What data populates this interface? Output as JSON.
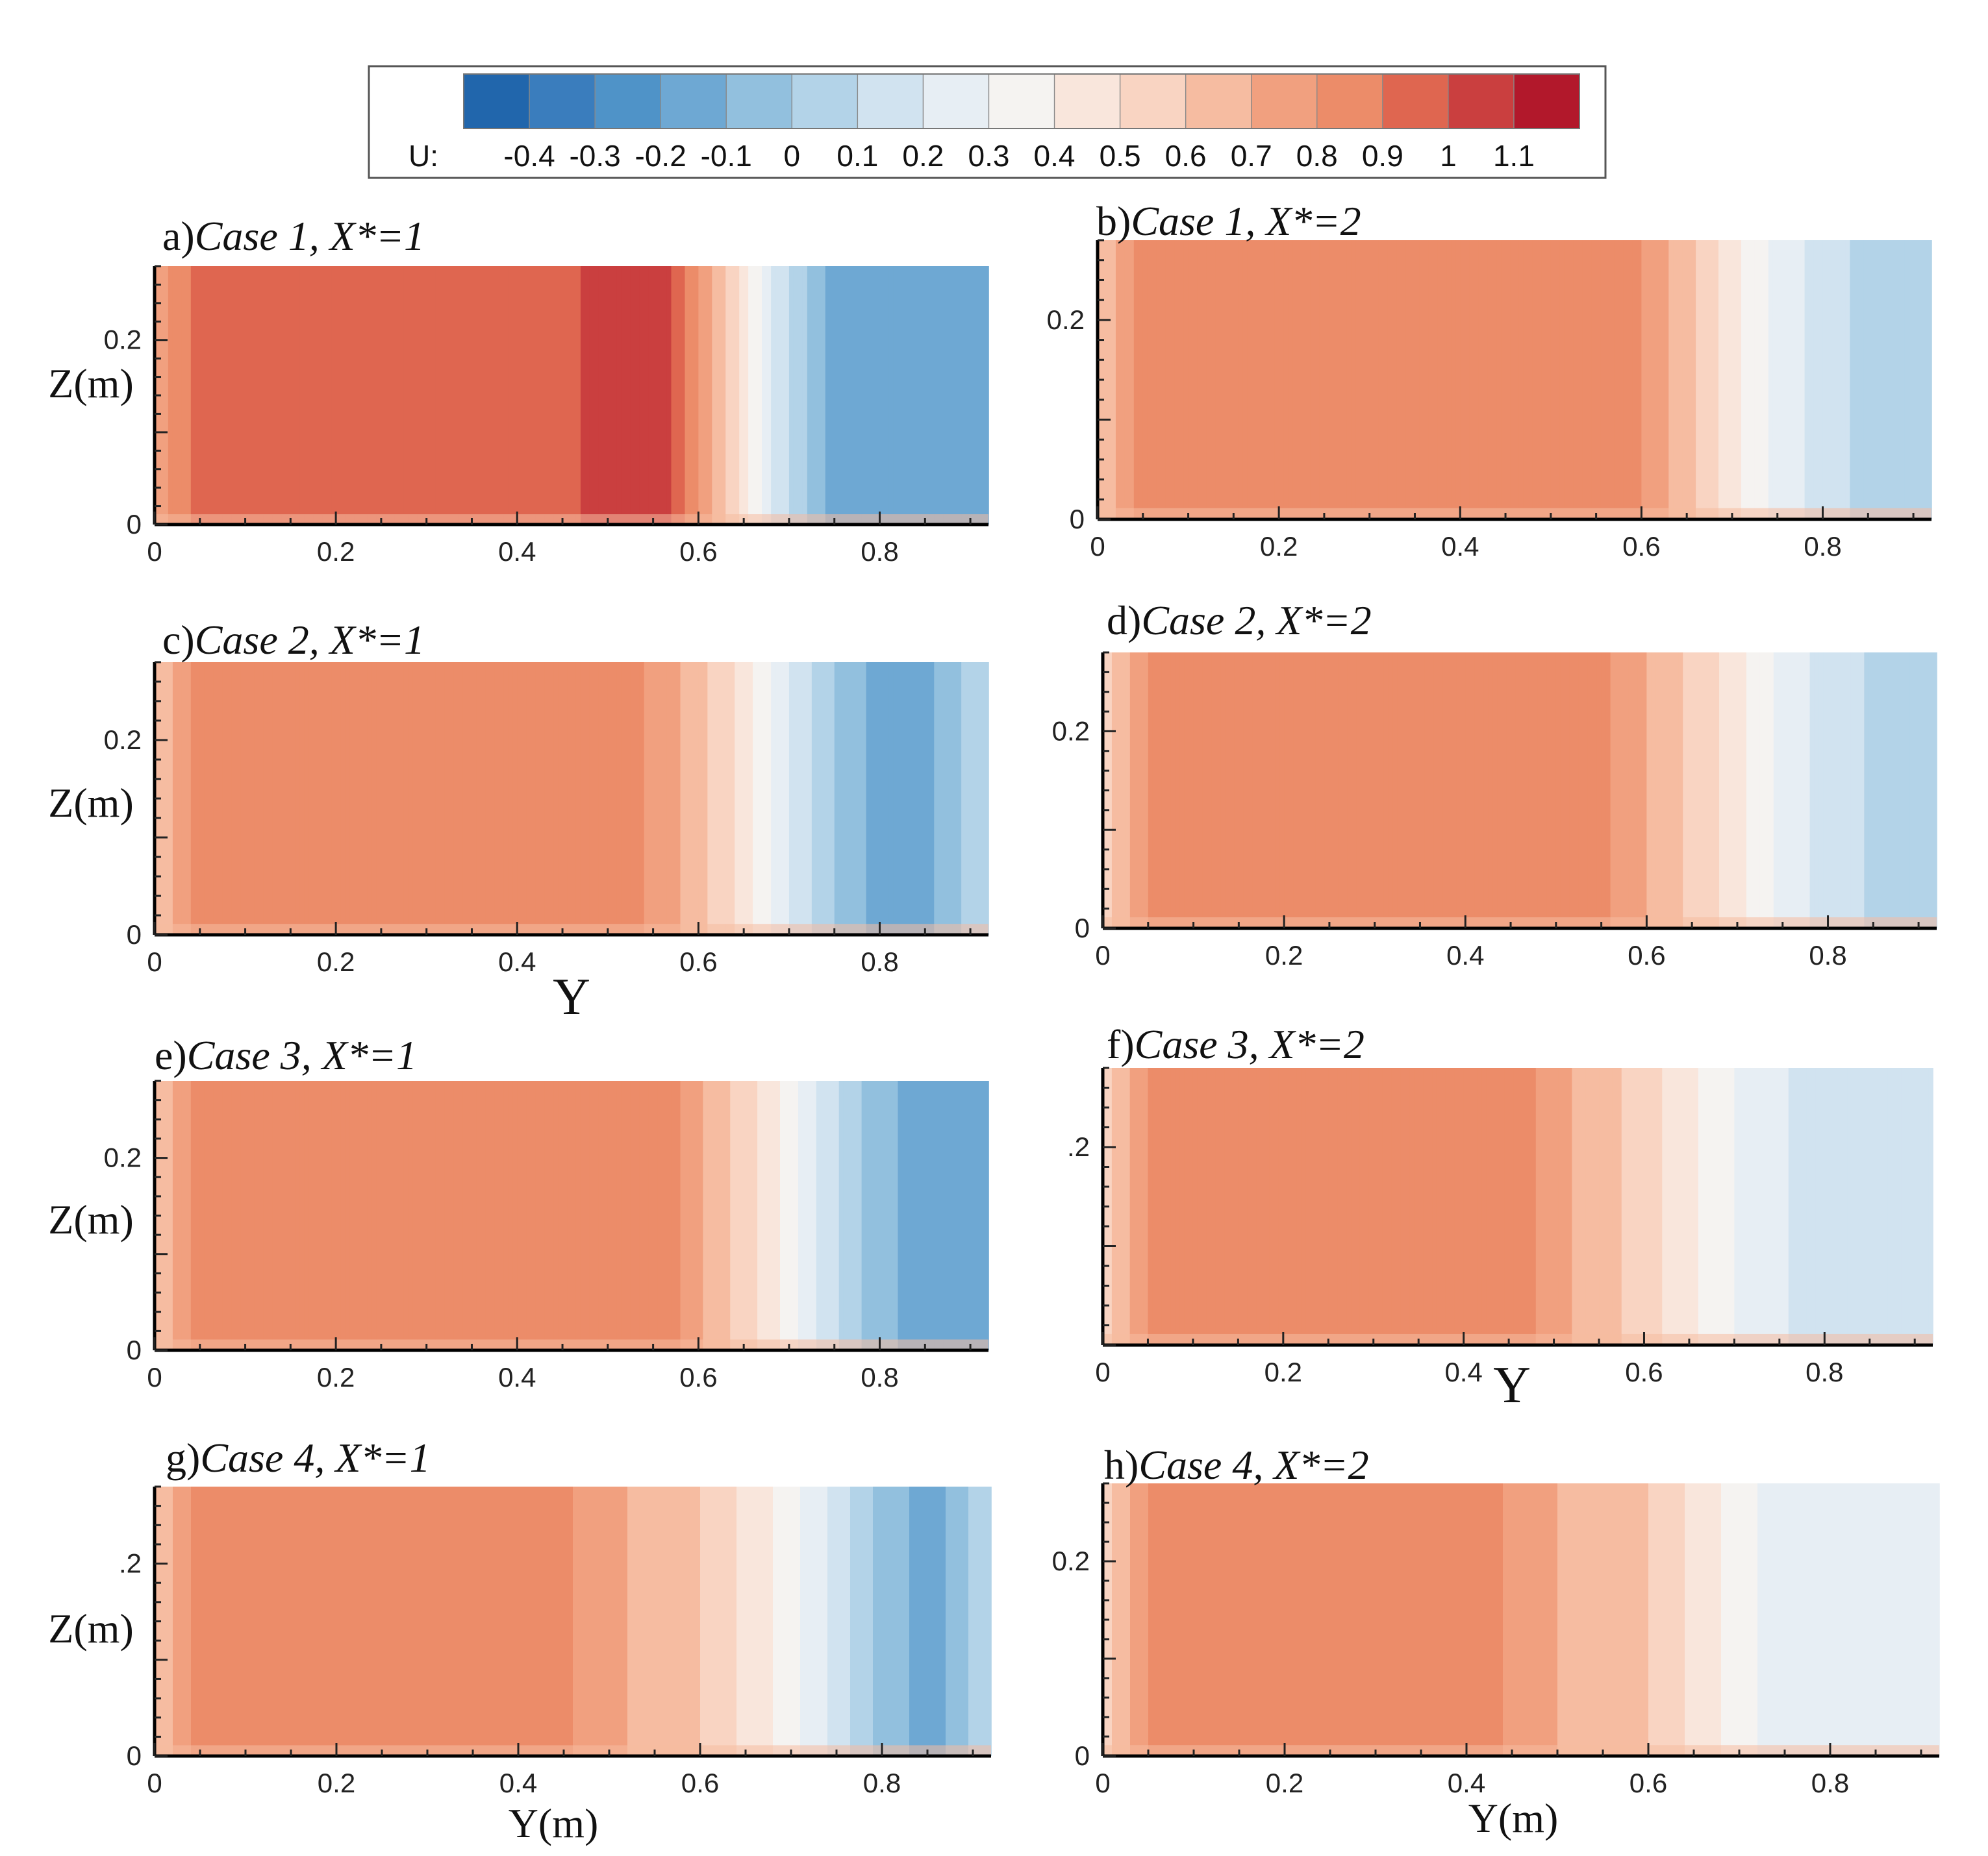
{
  "colorbar": {
    "variable_label": "U:",
    "tick_labels": [
      "-0.4",
      "-0.3",
      "-0.2",
      "-0.1",
      "0",
      "0.1",
      "0.2",
      "0.3",
      "0.4",
      "0.5",
      "0.6",
      "0.7",
      "0.8",
      "0.9",
      "1",
      "1.1"
    ],
    "levels": [
      -0.4,
      -0.3,
      -0.2,
      -0.1,
      0,
      0.1,
      0.2,
      0.3,
      0.4,
      0.5,
      0.6,
      0.7,
      0.8,
      0.9,
      1,
      1.1
    ],
    "colors": [
      "#2166ac",
      "#3a7dbd",
      "#4f93c8",
      "#6ea8d3",
      "#92c0de",
      "#b3d3e8",
      "#d1e3f0",
      "#e7eef4",
      "#f5f3f1",
      "#f9e6dc",
      "#f9d4c2",
      "#f6bca1",
      "#f1a07f",
      "#ec8c69",
      "#df6650",
      "#ca3f3f",
      "#b2182b"
    ]
  },
  "chart_data": [
    {
      "id": "a",
      "type": "heatmap",
      "panel_letter": "a)",
      "title": "Case 1, X*=1",
      "case": "Case 1",
      "x_star": 1,
      "xlabel": "",
      "ylabel": "Z(m)",
      "xlim": [
        0,
        0.92
      ],
      "ylim": [
        0,
        0.28
      ],
      "x_ticks": [
        "0",
        "0.2",
        "0.4",
        "0.6",
        "0.8"
      ],
      "y_ticks": [
        "0",
        "0.2"
      ],
      "profile": [
        {
          "y": 0,
          "U": 0.75
        },
        {
          "y": 0.04,
          "U": 0.9
        },
        {
          "y": 0.45,
          "U": 0.92
        },
        {
          "y": 0.47,
          "U": 1.0
        },
        {
          "y": 0.57,
          "U": 1.0
        },
        {
          "y": 0.6,
          "U": 0.8
        },
        {
          "y": 0.64,
          "U": 0.55
        },
        {
          "y": 0.68,
          "U": 0.2
        },
        {
          "y": 0.74,
          "U": -0.1
        },
        {
          "y": 0.84,
          "U": -0.2
        },
        {
          "y": 0.92,
          "U": -0.1
        }
      ]
    },
    {
      "id": "b",
      "type": "heatmap",
      "panel_letter": "b)",
      "title": "Case 1, X*=2",
      "case": "Case 1",
      "x_star": 2,
      "xlabel": "",
      "ylabel": "",
      "xlim": [
        0,
        0.92
      ],
      "ylim": [
        0,
        0.28
      ],
      "x_ticks": [
        "0",
        "0.2",
        "0.4",
        "0.6",
        "0.8"
      ],
      "y_ticks": [
        "0",
        "0.2"
      ],
      "profile": [
        {
          "y": 0,
          "U": 0.6
        },
        {
          "y": 0.04,
          "U": 0.8
        },
        {
          "y": 0.12,
          "U": 0.9
        },
        {
          "y": 0.2,
          "U": 0.8
        },
        {
          "y": 0.6,
          "U": 0.8
        },
        {
          "y": 0.66,
          "U": 0.6
        },
        {
          "y": 0.72,
          "U": 0.35
        },
        {
          "y": 0.8,
          "U": 0.15
        },
        {
          "y": 0.86,
          "U": 0.05
        },
        {
          "y": 0.92,
          "U": 0.1
        }
      ]
    },
    {
      "id": "c",
      "type": "heatmap",
      "panel_letter": "c)",
      "title": "Case 2, X*=1",
      "case": "Case 2",
      "x_star": 1,
      "xlabel": "Y",
      "ylabel": "Z(m)",
      "xlim": [
        0,
        0.92
      ],
      "ylim": [
        0,
        0.28
      ],
      "x_ticks": [
        "0",
        "0.2",
        "0.4",
        "0.6",
        "0.8"
      ],
      "y_ticks": [
        "0",
        "0.2"
      ],
      "profile": [
        {
          "y": 0,
          "U": 0.6
        },
        {
          "y": 0.04,
          "U": 0.8
        },
        {
          "y": 0.54,
          "U": 0.8
        },
        {
          "y": 0.58,
          "U": 0.7
        },
        {
          "y": 0.64,
          "U": 0.5
        },
        {
          "y": 0.7,
          "U": 0.2
        },
        {
          "y": 0.76,
          "U": -0.05
        },
        {
          "y": 0.83,
          "U": -0.2
        },
        {
          "y": 0.92,
          "U": 0.1
        }
      ]
    },
    {
      "id": "d",
      "type": "heatmap",
      "panel_letter": "d)",
      "title": "Case 2, X*=2",
      "case": "Case 2",
      "x_star": 2,
      "xlabel": "",
      "ylabel": "",
      "xlim": [
        0,
        0.92
      ],
      "ylim": [
        0,
        0.28
      ],
      "x_ticks": [
        "0",
        "0.2",
        "0.4",
        "0.6",
        "0.8"
      ],
      "y_ticks": [
        "0",
        "0.2"
      ],
      "profile": [
        {
          "y": 0,
          "U": 0.55
        },
        {
          "y": 0.05,
          "U": 0.8
        },
        {
          "y": 0.56,
          "U": 0.8
        },
        {
          "y": 0.6,
          "U": 0.7
        },
        {
          "y": 0.68,
          "U": 0.5
        },
        {
          "y": 0.74,
          "U": 0.3
        },
        {
          "y": 0.8,
          "U": 0.15
        },
        {
          "y": 0.88,
          "U": 0.05
        },
        {
          "y": 0.92,
          "U": 0.0
        }
      ]
    },
    {
      "id": "e",
      "type": "heatmap",
      "panel_letter": "e)",
      "title": "Case 3, X*=1",
      "case": "Case 3",
      "x_star": 1,
      "xlabel": "",
      "ylabel": "Z(m)",
      "xlim": [
        0,
        0.92
      ],
      "ylim": [
        0,
        0.28
      ],
      "x_ticks": [
        "0",
        "0.2",
        "0.4",
        "0.6",
        "0.8"
      ],
      "y_ticks": [
        "0",
        "0.2"
      ],
      "profile": [
        {
          "y": 0,
          "U": 0.6
        },
        {
          "y": 0.04,
          "U": 0.8
        },
        {
          "y": 0.58,
          "U": 0.8
        },
        {
          "y": 0.62,
          "U": 0.65
        },
        {
          "y": 0.68,
          "U": 0.45
        },
        {
          "y": 0.72,
          "U": 0.25
        },
        {
          "y": 0.78,
          "U": 0.0
        },
        {
          "y": 0.86,
          "U": -0.2
        },
        {
          "y": 0.92,
          "U": -0.15
        }
      ]
    },
    {
      "id": "f",
      "type": "heatmap",
      "panel_letter": "f)",
      "title": "Case 3, X*=2",
      "case": "Case 3",
      "x_star": 2,
      "xlabel": "Y",
      "ylabel": "",
      "xlim": [
        0,
        0.92
      ],
      "ylim": [
        0,
        0.28
      ],
      "x_ticks": [
        "0",
        "0.2",
        "0.4",
        "0.6",
        "0.8"
      ],
      "y_ticks": [
        ".2"
      ],
      "profile": [
        {
          "y": 0,
          "U": 0.55
        },
        {
          "y": 0.05,
          "U": 0.8
        },
        {
          "y": 0.48,
          "U": 0.8
        },
        {
          "y": 0.52,
          "U": 0.7
        },
        {
          "y": 0.6,
          "U": 0.55
        },
        {
          "y": 0.66,
          "U": 0.4
        },
        {
          "y": 0.72,
          "U": 0.25
        },
        {
          "y": 0.8,
          "U": 0.15
        },
        {
          "y": 0.92,
          "U": 0.2
        }
      ]
    },
    {
      "id": "g",
      "type": "heatmap",
      "panel_letter": "g)",
      "title": "Case 4, X*=1",
      "case": "Case 4",
      "x_star": 1,
      "xlabel": "Y(m)",
      "ylabel": "Z(m)",
      "xlim": [
        0,
        0.92
      ],
      "ylim": [
        0,
        0.28
      ],
      "x_ticks": [
        "0",
        "0.2",
        "0.4",
        "0.6",
        "0.8"
      ],
      "y_ticks": [
        "0",
        ".2"
      ],
      "profile": [
        {
          "y": 0,
          "U": 0.6
        },
        {
          "y": 0.04,
          "U": 0.8
        },
        {
          "y": 0.46,
          "U": 0.8
        },
        {
          "y": 0.52,
          "U": 0.7
        },
        {
          "y": 0.6,
          "U": 0.6
        },
        {
          "y": 0.68,
          "U": 0.4
        },
        {
          "y": 0.74,
          "U": 0.2
        },
        {
          "y": 0.8,
          "U": -0.05
        },
        {
          "y": 0.86,
          "U": -0.15
        },
        {
          "y": 0.92,
          "U": 0.1
        }
      ]
    },
    {
      "id": "h",
      "type": "heatmap",
      "panel_letter": "h)",
      "title": "Case 4, X*=2",
      "case": "Case 4",
      "x_star": 2,
      "xlabel": "Y(m)",
      "ylabel": "",
      "xlim": [
        0,
        0.92
      ],
      "ylim": [
        0,
        0.28
      ],
      "x_ticks": [
        "0",
        "0.2",
        "0.4",
        "0.6",
        "0.8"
      ],
      "y_ticks": [
        "0",
        "0.2"
      ],
      "profile": [
        {
          "y": 0,
          "U": 0.55
        },
        {
          "y": 0.05,
          "U": 0.8
        },
        {
          "y": 0.44,
          "U": 0.8
        },
        {
          "y": 0.5,
          "U": 0.7
        },
        {
          "y": 0.6,
          "U": 0.6
        },
        {
          "y": 0.66,
          "U": 0.45
        },
        {
          "y": 0.72,
          "U": 0.3
        },
        {
          "y": 0.8,
          "U": 0.2
        },
        {
          "y": 0.92,
          "U": 0.25
        }
      ]
    }
  ]
}
